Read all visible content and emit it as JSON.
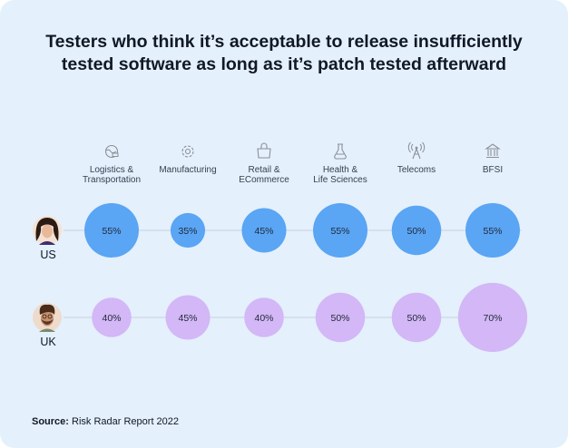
{
  "title_line1": "Testers who think it’s acceptable to release insufficiently",
  "title_line2": "tested software as long as it’s patch tested afterward",
  "source": {
    "label": "Source:",
    "text": " Risk Radar Report 2022"
  },
  "colors": {
    "background": "#e4f0fc",
    "us_bubble": "#5aa5f4",
    "uk_bubble": "#d3b7f6",
    "row_line": "#cfd6e4",
    "icon": "#8a8f99",
    "text": "#111827"
  },
  "chart_data": {
    "type": "bubble-matrix",
    "title": "Testers who think it’s acceptable to release insufficiently tested software as long as it’s patch tested afterward",
    "categories": [
      {
        "label": [
          "Logistics &",
          "Transportation"
        ],
        "icon": "globe-truck-icon"
      },
      {
        "label": [
          "Manufacturing"
        ],
        "icon": "gear-icon"
      },
      {
        "label": [
          "Retail &",
          "ECommerce"
        ],
        "icon": "shopping-bag-icon"
      },
      {
        "label": [
          "Health &",
          "Life Sciences"
        ],
        "icon": "flask-icon"
      },
      {
        "label": [
          "Telecoms"
        ],
        "icon": "antenna-icon"
      },
      {
        "label": [
          "BFSI"
        ],
        "icon": "bank-icon"
      }
    ],
    "series": [
      {
        "name": "US",
        "avatar": "woman-avatar",
        "values": [
          55,
          35,
          45,
          55,
          50,
          55
        ]
      },
      {
        "name": "UK",
        "avatar": "man-avatar",
        "values": [
          40,
          45,
          40,
          50,
          50,
          70
        ]
      }
    ],
    "unit": "%"
  }
}
